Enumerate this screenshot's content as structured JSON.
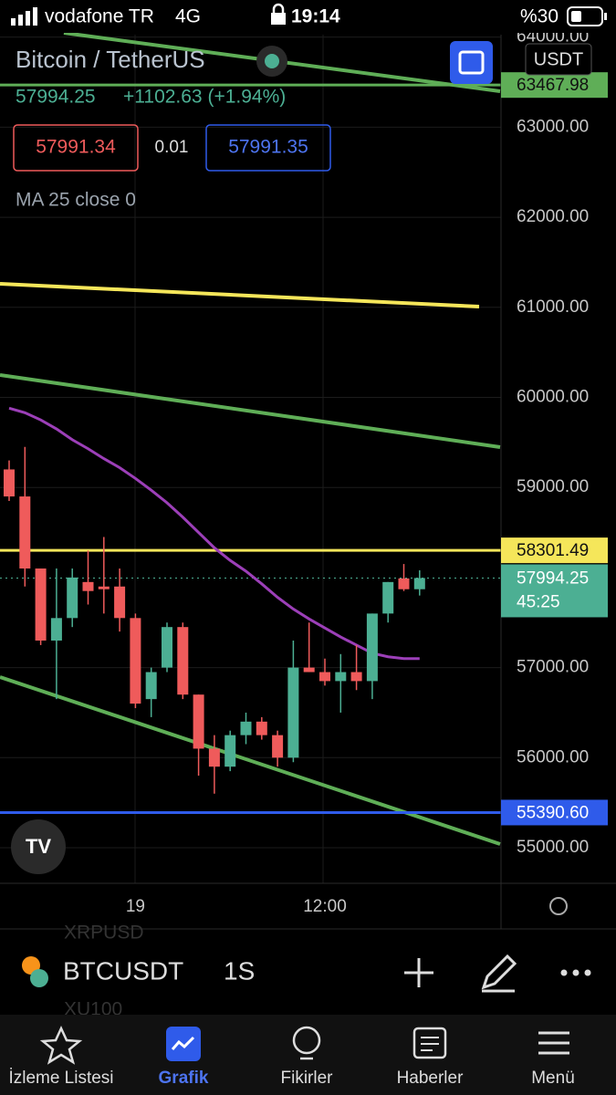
{
  "status_bar": {
    "carrier": "vodafone TR",
    "network": "4G",
    "time": "19:14",
    "battery": "%30"
  },
  "header": {
    "symbol_name": "Bitcoin / TetherUS",
    "currency": "USDT",
    "last": "57994.25",
    "change": "+1102.63 (+1.94%)",
    "bid": "57991.34",
    "spread": "0.01",
    "ask": "57991.35",
    "indicator": "MA 25 close 0"
  },
  "chart_data": {
    "type": "candlestick",
    "categories": [
      null,
      null,
      null,
      null,
      null,
      null,
      null,
      null,
      "19",
      null,
      null,
      null,
      null,
      null,
      null,
      null,
      null,
      null,
      null,
      null,
      "12:00",
      null,
      null,
      null,
      null,
      null,
      null
    ],
    "open": [
      59200,
      58900,
      58100,
      57300,
      57550,
      57950,
      57900,
      57900,
      57550,
      56650,
      57000,
      57450,
      56700,
      56100,
      55900,
      56250,
      56400,
      56250,
      56000,
      57000,
      56950,
      56850,
      56950,
      56850,
      57600,
      57990,
      57870
    ],
    "high": [
      59300,
      59450,
      58100,
      58100,
      58100,
      58300,
      58450,
      58100,
      57600,
      57000,
      57500,
      57500,
      56700,
      56250,
      56300,
      56500,
      56450,
      56300,
      57300,
      57500,
      57100,
      57150,
      57250,
      57600,
      57950,
      58150,
      58080
    ],
    "low": [
      58850,
      57900,
      57250,
      56650,
      57450,
      57700,
      57600,
      57400,
      56550,
      56450,
      56950,
      56650,
      55800,
      55600,
      55850,
      56150,
      56200,
      55900,
      55950,
      56950,
      56800,
      56500,
      56750,
      56650,
      57500,
      57850,
      57800
    ],
    "close": [
      58900,
      58100,
      57300,
      57550,
      58000,
      57850,
      57870,
      57550,
      56600,
      56950,
      57450,
      56700,
      56100,
      55900,
      56250,
      56400,
      56250,
      56000,
      57000,
      56950,
      56850,
      56950,
      56850,
      57600,
      57950,
      57870,
      57994.25
    ],
    "up_color": "#4caf93",
    "down_color": "#ef5b5b",
    "series": [
      {
        "name": "MA 25",
        "color": "#9c3fb8",
        "values": [
          59880,
          59830,
          59750,
          59650,
          59530,
          59430,
          59320,
          59220,
          59100,
          58970,
          58830,
          58670,
          58500,
          58330,
          58190,
          58070,
          57930,
          57780,
          57650,
          57540,
          57440,
          57340,
          57250,
          57160,
          57120,
          57100,
          57100
        ]
      }
    ],
    "ylim": [
      54605,
      64027
    ],
    "yticks": [
      {
        "value": 55000,
        "label": "55000.00"
      },
      {
        "value": 56000,
        "label": "56000.00"
      },
      {
        "value": 57000,
        "label": "57000.00"
      },
      {
        "value": 59000,
        "label": "59000.00"
      },
      {
        "value": 60000,
        "label": "60000.00"
      },
      {
        "value": 61000,
        "label": "61000.00"
      },
      {
        "value": 62000,
        "label": "62000.00"
      },
      {
        "value": 63000,
        "label": "63000.00"
      },
      {
        "value": 64000,
        "label": "64000.00"
      }
    ],
    "levels": [
      {
        "value": 63467.98,
        "color": "#5fae57"
      },
      {
        "value": 58301.49,
        "color": "#f5e65a"
      },
      {
        "value": 55390.6,
        "label": "55390.60",
        "color": "#2f5bea"
      }
    ],
    "last_price": 57994.25,
    "countdown": "45:25",
    "grid": true
  },
  "toolbar": {
    "watchlist_above": "XRPUSD",
    "symbol": "BTCUSDT",
    "interval": "1S",
    "watchlist_below": "XU100"
  },
  "tabs": [
    "İzleme Listesi",
    "Grafik",
    "Fikirler",
    "Haberler",
    "Menü"
  ]
}
